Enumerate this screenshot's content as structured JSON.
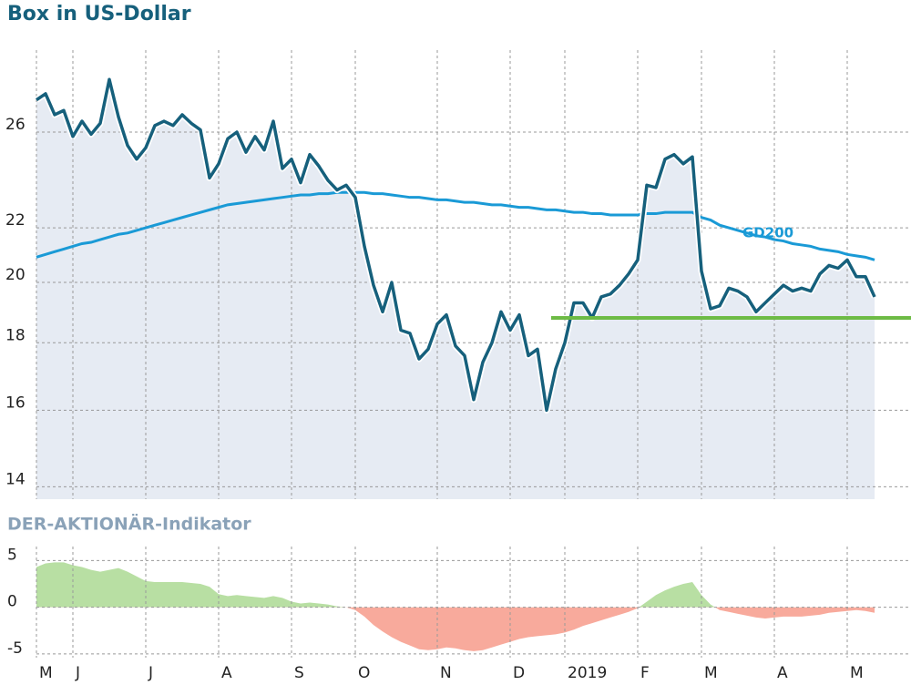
{
  "chart_data": [
    {
      "type": "line",
      "title": "Box in US-Dollar",
      "log_scale": true,
      "ylim": [
        13.7,
        30
      ],
      "yticks": [
        14,
        16,
        18,
        20,
        22,
        26
      ],
      "grid": true,
      "area_color": "#e6ebf3",
      "series": [
        {
          "color": "#16607c",
          "values": [
            27.5,
            27.8,
            26.8,
            27.0,
            25.8,
            26.5,
            25.9,
            26.4,
            28.5,
            26.7,
            25.4,
            24.8,
            25.3,
            26.3,
            26.5,
            26.3,
            26.8,
            26.4,
            26.1,
            24.0,
            24.6,
            25.7,
            26.0,
            25.1,
            25.8,
            25.2,
            26.5,
            24.4,
            24.8,
            23.8,
            25.0,
            24.5,
            23.9,
            23.5,
            23.7,
            23.2,
            21.3,
            19.9,
            19.0,
            20.0,
            18.4,
            18.3,
            17.5,
            17.8,
            18.6,
            18.9,
            17.9,
            17.6,
            16.3,
            17.4,
            18.0,
            19.0,
            18.4,
            18.9,
            17.6,
            17.8,
            16.0,
            17.2,
            18.0,
            19.3,
            19.3,
            18.8,
            19.5,
            19.6,
            19.9,
            20.3,
            20.8,
            23.7,
            23.6,
            24.8,
            25.0,
            24.6,
            24.9,
            20.4,
            19.1,
            19.2,
            19.8,
            19.7,
            19.5,
            19.0,
            19.3,
            19.6,
            19.9,
            19.7,
            19.8,
            19.7,
            20.3,
            20.6,
            20.5,
            20.8,
            20.2,
            20.2,
            19.5
          ]
        },
        {
          "name": "GD200",
          "color": "#1a9ad6",
          "values": [
            20.9,
            21.0,
            21.1,
            21.2,
            21.3,
            21.4,
            21.45,
            21.55,
            21.65,
            21.75,
            21.8,
            21.9,
            22.0,
            22.1,
            22.2,
            22.3,
            22.4,
            22.5,
            22.6,
            22.7,
            22.8,
            22.9,
            22.95,
            23.0,
            23.05,
            23.1,
            23.15,
            23.2,
            23.25,
            23.3,
            23.3,
            23.35,
            23.35,
            23.4,
            23.4,
            23.4,
            23.4,
            23.35,
            23.35,
            23.3,
            23.25,
            23.2,
            23.2,
            23.15,
            23.1,
            23.1,
            23.05,
            23.0,
            23.0,
            22.95,
            22.9,
            22.9,
            22.85,
            22.8,
            22.8,
            22.75,
            22.7,
            22.7,
            22.65,
            22.6,
            22.6,
            22.55,
            22.55,
            22.5,
            22.5,
            22.5,
            22.5,
            22.55,
            22.55,
            22.6,
            22.6,
            22.6,
            22.6,
            22.4,
            22.3,
            22.1,
            22.0,
            21.9,
            21.8,
            21.7,
            21.65,
            21.55,
            21.5,
            21.4,
            21.35,
            21.3,
            21.2,
            21.15,
            21.1,
            21.0,
            20.95,
            20.9,
            20.8
          ]
        }
      ],
      "hline": {
        "value": 18.8,
        "from_index": 56.5,
        "color": "#6dbb45"
      }
    },
    {
      "type": "area",
      "title": "DER-AKTIONÄR-Indikator",
      "ylim": [
        -5.4,
        6.5
      ],
      "yticks": [
        5,
        0,
        -5
      ],
      "grid": true,
      "positive_color": "#b8dfa3",
      "negative_color": "#f8aa9c",
      "categories": [
        "M",
        null,
        null,
        null,
        "J",
        null,
        null,
        null,
        null,
        null,
        null,
        null,
        "J",
        null,
        null,
        null,
        null,
        null,
        null,
        null,
        "A",
        null,
        null,
        null,
        null,
        null,
        null,
        null,
        "S",
        null,
        null,
        null,
        null,
        null,
        null,
        "O",
        null,
        null,
        null,
        null,
        null,
        null,
        null,
        null,
        "N",
        null,
        null,
        null,
        null,
        null,
        null,
        null,
        "D",
        null,
        null,
        null,
        null,
        null,
        "2019",
        null,
        null,
        null,
        null,
        null,
        null,
        null,
        "F",
        null,
        null,
        null,
        null,
        null,
        null,
        "M",
        null,
        null,
        null,
        null,
        null,
        null,
        null,
        "A",
        null,
        null,
        null,
        null,
        null,
        null,
        null,
        "M",
        null,
        null,
        null
      ],
      "values": [
        4.3,
        4.7,
        4.8,
        4.8,
        4.5,
        4.3,
        4.0,
        3.8,
        4.0,
        4.2,
        3.8,
        3.3,
        2.8,
        2.7,
        2.7,
        2.7,
        2.7,
        2.6,
        2.5,
        2.2,
        1.4,
        1.2,
        1.3,
        1.2,
        1.1,
        1.0,
        1.2,
        1.0,
        0.6,
        0.4,
        0.5,
        0.4,
        0.3,
        0.1,
        0.0,
        -0.3,
        -1.0,
        -1.9,
        -2.6,
        -3.2,
        -3.7,
        -4.1,
        -4.5,
        -4.6,
        -4.5,
        -4.3,
        -4.4,
        -4.6,
        -4.7,
        -4.6,
        -4.3,
        -4.0,
        -3.7,
        -3.4,
        -3.2,
        -3.1,
        -3.0,
        -2.9,
        -2.7,
        -2.4,
        -2.0,
        -1.7,
        -1.4,
        -1.1,
        -0.8,
        -0.5,
        -0.1,
        0.6,
        1.3,
        1.8,
        2.2,
        2.5,
        2.7,
        1.3,
        0.3,
        -0.3,
        -0.5,
        -0.7,
        -0.9,
        -1.1,
        -1.2,
        -1.1,
        -1.0,
        -1.0,
        -1.0,
        -0.9,
        -0.8,
        -0.6,
        -0.5,
        -0.4,
        -0.3,
        -0.4,
        -0.6
      ]
    }
  ]
}
